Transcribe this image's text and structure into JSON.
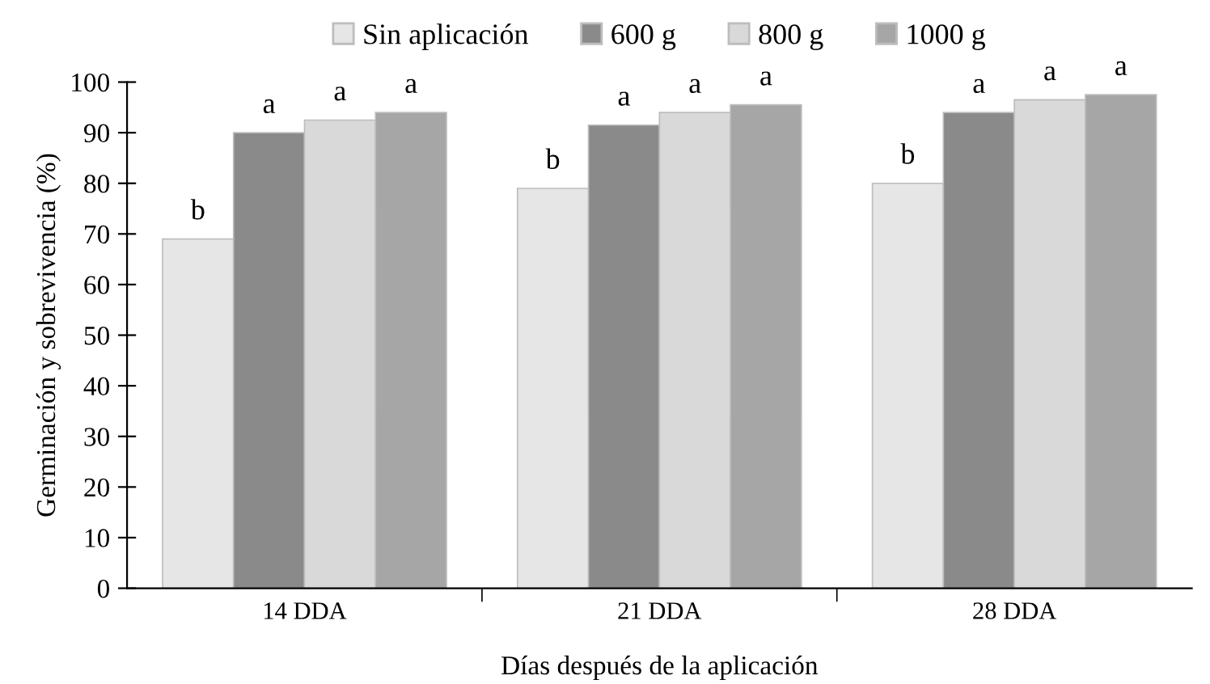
{
  "chart_data": {
    "type": "bar",
    "xlabel": "Días después de la aplicación",
    "ylabel": "Germinación y sobrevivencia (%)",
    "categories": [
      "14 DDA",
      "21 DDA",
      "28 DDA"
    ],
    "series": [
      {
        "name": "Sin aplicación",
        "color": "#e6e6e6",
        "values": [
          69,
          79,
          80
        ],
        "value_labels": [
          "b",
          "b",
          "b"
        ]
      },
      {
        "name": "600 g",
        "color": "#8a8a8a",
        "values": [
          90,
          91.5,
          94
        ],
        "value_labels": [
          "a",
          "a",
          "a"
        ]
      },
      {
        "name": "800 g",
        "color": "#d9d9d9",
        "values": [
          92.5,
          94,
          96.5
        ],
        "value_labels": [
          "a",
          "a",
          "a"
        ]
      },
      {
        "name": "1000 g",
        "color": "#a6a6a6",
        "values": [
          94,
          95.5,
          97.5
        ],
        "value_labels": [
          "a",
          "a",
          "a"
        ]
      }
    ],
    "ylim": [
      0,
      100
    ],
    "yticks": [
      0,
      10,
      20,
      30,
      40,
      50,
      60,
      70,
      80,
      90,
      100
    ],
    "grid": false,
    "legend": "top"
  }
}
